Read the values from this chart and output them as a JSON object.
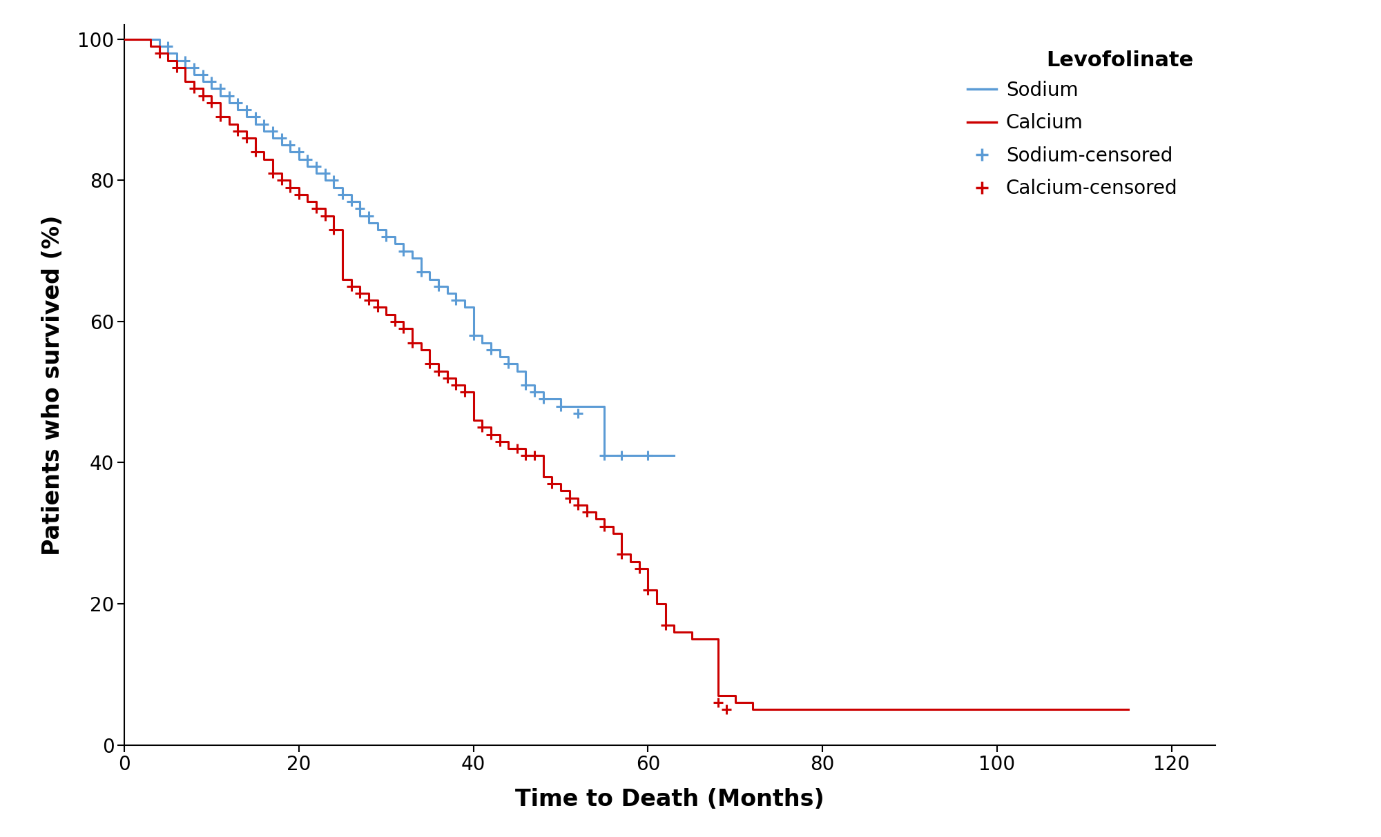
{
  "title": "Levofolinate",
  "xlabel": "Time to Death (Months)",
  "ylabel": "Patients who survived (%)",
  "xlim": [
    0,
    125
  ],
  "ylim": [
    0,
    102
  ],
  "xticks": [
    0,
    20,
    40,
    60,
    80,
    100,
    120
  ],
  "yticks": [
    0,
    20,
    40,
    60,
    80,
    100
  ],
  "sodium_color": "#5B9BD5",
  "calcium_color": "#CC0000",
  "background_color": "#ffffff",
  "sodium_curve": {
    "times": [
      0,
      4,
      5,
      6,
      7,
      8,
      9,
      10,
      11,
      12,
      13,
      14,
      15,
      16,
      17,
      18,
      19,
      20,
      21,
      22,
      23,
      24,
      25,
      26,
      27,
      28,
      29,
      30,
      31,
      32,
      33,
      34,
      35,
      36,
      37,
      38,
      39,
      40,
      41,
      42,
      43,
      44,
      45,
      46,
      47,
      48,
      50,
      55,
      57,
      60,
      63
    ],
    "survival": [
      100,
      99,
      98,
      97,
      96,
      95,
      94,
      93,
      92,
      91,
      90,
      89,
      88,
      87,
      86,
      85,
      84,
      83,
      82,
      81,
      80,
      79,
      78,
      77,
      75,
      74,
      73,
      72,
      71,
      70,
      69,
      67,
      66,
      65,
      64,
      63,
      62,
      58,
      57,
      56,
      55,
      54,
      53,
      51,
      50,
      49,
      48,
      41,
      41,
      41,
      41
    ]
  },
  "sodium_censored": {
    "times": [
      5,
      7,
      8,
      9,
      10,
      11,
      12,
      13,
      14,
      15,
      16,
      17,
      18,
      19,
      20,
      21,
      22,
      23,
      24,
      25,
      26,
      27,
      28,
      30,
      32,
      34,
      36,
      38,
      40,
      42,
      44,
      46,
      47,
      48,
      50,
      52,
      55,
      57,
      60
    ],
    "survival": [
      99,
      97,
      96,
      95,
      94,
      93,
      92,
      91,
      90,
      89,
      88,
      87,
      86,
      85,
      84,
      83,
      82,
      81,
      80,
      78,
      77,
      76,
      75,
      72,
      70,
      67,
      65,
      63,
      58,
      56,
      54,
      51,
      50,
      49,
      48,
      47,
      41,
      41,
      41
    ]
  },
  "calcium_curve": {
    "times": [
      0,
      3,
      4,
      5,
      6,
      7,
      8,
      9,
      10,
      11,
      12,
      13,
      14,
      15,
      16,
      17,
      18,
      19,
      20,
      21,
      22,
      23,
      24,
      25,
      26,
      27,
      28,
      29,
      30,
      31,
      32,
      33,
      34,
      35,
      36,
      37,
      38,
      39,
      40,
      41,
      42,
      43,
      44,
      45,
      46,
      47,
      48,
      49,
      50,
      51,
      52,
      53,
      54,
      55,
      56,
      57,
      58,
      59,
      60,
      61,
      62,
      63,
      65,
      68,
      70,
      72,
      75,
      115
    ],
    "survival": [
      100,
      99,
      98,
      97,
      96,
      94,
      93,
      92,
      91,
      89,
      88,
      87,
      86,
      84,
      83,
      81,
      80,
      79,
      78,
      77,
      76,
      75,
      73,
      66,
      65,
      64,
      63,
      62,
      61,
      60,
      59,
      57,
      56,
      54,
      53,
      52,
      51,
      50,
      46,
      45,
      44,
      43,
      42,
      42,
      41,
      41,
      38,
      37,
      36,
      35,
      34,
      33,
      32,
      31,
      30,
      27,
      26,
      25,
      22,
      20,
      17,
      16,
      15,
      7,
      6,
      5,
      5,
      5
    ]
  },
  "calcium_censored": {
    "times": [
      4,
      6,
      8,
      9,
      10,
      11,
      13,
      14,
      15,
      17,
      18,
      19,
      20,
      22,
      23,
      24,
      26,
      27,
      28,
      29,
      31,
      32,
      33,
      35,
      36,
      37,
      38,
      39,
      41,
      42,
      43,
      45,
      46,
      47,
      49,
      51,
      52,
      53,
      55,
      57,
      59,
      60,
      62,
      68,
      69
    ],
    "survival": [
      98,
      96,
      93,
      92,
      91,
      89,
      87,
      86,
      84,
      81,
      80,
      79,
      78,
      76,
      75,
      73,
      65,
      64,
      63,
      62,
      60,
      59,
      57,
      54,
      53,
      52,
      51,
      50,
      45,
      44,
      43,
      42,
      41,
      41,
      37,
      35,
      34,
      33,
      31,
      27,
      25,
      22,
      17,
      6,
      5
    ]
  }
}
